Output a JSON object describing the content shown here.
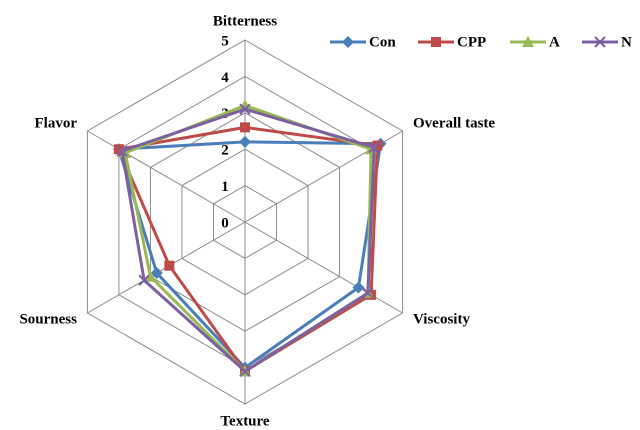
{
  "chart_data": {
    "type": "radar",
    "categories": [
      "Bitterness",
      "Overall taste",
      "Viscosity",
      "Texture",
      "Sourness",
      "Flavor"
    ],
    "ylim": [
      0,
      5
    ],
    "yticks": [
      0,
      1,
      2,
      3,
      4,
      5
    ],
    "grid": true,
    "legend": "top-right",
    "series": [
      {
        "name": "Con",
        "color": "#4a7ebb",
        "marker": "diamond",
        "values": [
          2.2,
          4.3,
          3.6,
          4.0,
          2.8,
          4.0
        ]
      },
      {
        "name": "CPP",
        "color": "#be4b48",
        "marker": "square",
        "values": [
          2.6,
          4.2,
          4.0,
          4.1,
          2.4,
          4.0
        ]
      },
      {
        "name": "A",
        "color": "#98b954",
        "marker": "triangle",
        "values": [
          3.2,
          4.0,
          3.9,
          4.1,
          3.0,
          3.8
        ]
      },
      {
        "name": "N",
        "color": "#7d60a0",
        "marker": "x",
        "values": [
          3.1,
          4.1,
          3.9,
          4.1,
          3.2,
          3.9
        ]
      }
    ]
  }
}
